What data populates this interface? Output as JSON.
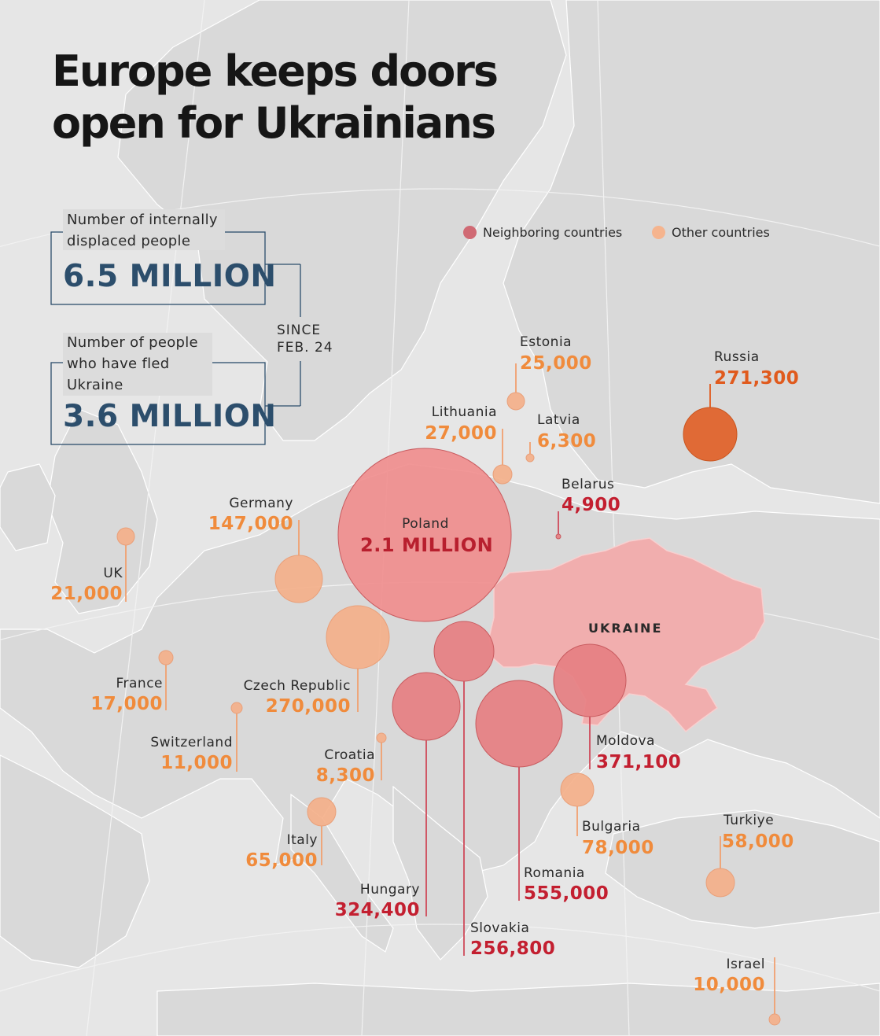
{
  "title_lines": [
    "Europe keeps doors",
    "open for Ukrainians"
  ],
  "stats": {
    "idp_label_lines": [
      "Number of internally",
      "displaced people"
    ],
    "idp_value": "6.5 MILLION",
    "fled_label_lines": [
      "Number of people",
      "who have fled",
      "Ukraine"
    ],
    "fled_value": "3.6 MILLION",
    "since_lines": [
      "SINCE",
      "FEB. 24"
    ]
  },
  "legend": [
    {
      "label": "Neighboring countries",
      "color": "#d06a74"
    },
    {
      "label": "Other countries",
      "color": "#f5b48e"
    }
  ],
  "map_label": "UKRAINE",
  "colors": {
    "neighbor_fill": "#e67f82",
    "neighbor_value": "#c31f30",
    "other_fill": "#f4b08a",
    "other_value": "#f08b3c",
    "russia_fill": "#e06a36",
    "russia_value": "#e05a1d",
    "poland_fill": "#f08e8e",
    "ukraine_fill": "#f1aeae",
    "land": "#d9d9d9",
    "water": "#e6e6e6",
    "stat_value": "#2c4e6c"
  },
  "countries": [
    {
      "name": "Poland",
      "value": "2.1 MILLION",
      "group": "neighbor"
    },
    {
      "name": "Romania",
      "value": "555,000",
      "group": "neighbor"
    },
    {
      "name": "Moldova",
      "value": "371,100",
      "group": "neighbor"
    },
    {
      "name": "Hungary",
      "value": "324,400",
      "group": "neighbor"
    },
    {
      "name": "Russia",
      "value": "271,300",
      "group": "russia"
    },
    {
      "name": "Czech Republic",
      "value": "270,000",
      "group": "other"
    },
    {
      "name": "Slovakia",
      "value": "256,800",
      "group": "neighbor"
    },
    {
      "name": "Germany",
      "value": "147,000",
      "group": "other"
    },
    {
      "name": "Bulgaria",
      "value": "78,000",
      "group": "other"
    },
    {
      "name": "Italy",
      "value": "65,000",
      "group": "other"
    },
    {
      "name": "Turkiye",
      "value": "58,000",
      "group": "other"
    },
    {
      "name": "Lithuania",
      "value": "27,000",
      "group": "other"
    },
    {
      "name": "Estonia",
      "value": "25,000",
      "group": "other"
    },
    {
      "name": "UK",
      "value": "21,000",
      "group": "other"
    },
    {
      "name": "France",
      "value": "17,000",
      "group": "other"
    },
    {
      "name": "Switzerland",
      "value": "11,000",
      "group": "other"
    },
    {
      "name": "Israel",
      "value": "10,000",
      "group": "other"
    },
    {
      "name": "Croatia",
      "value": "8,300",
      "group": "other"
    },
    {
      "name": "Latvia",
      "value": "6,300",
      "group": "other"
    },
    {
      "name": "Belarus",
      "value": "4,900",
      "group": "neighbor"
    }
  ]
}
